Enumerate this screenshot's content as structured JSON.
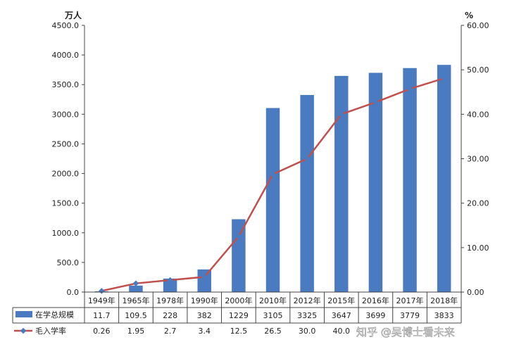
{
  "chart_data": {
    "type": "bar+line",
    "categories": [
      "1949年",
      "1965年",
      "1978年",
      "1990年",
      "2000年",
      "2010年",
      "2012年",
      "2015年",
      "2016年",
      "2017年",
      "2018年"
    ],
    "series": [
      {
        "name": "在学总规模",
        "type": "bar",
        "axis": "left",
        "values": [
          11.7,
          109.5,
          228,
          382,
          1229,
          3105,
          3325,
          3647,
          3699,
          3779,
          3833
        ],
        "labels": [
          "11.7",
          "109.5",
          "228",
          "382",
          "1229",
          "3105",
          "3325",
          "3647",
          "3699",
          "3779",
          "3833"
        ]
      },
      {
        "name": "毛入学率",
        "type": "line",
        "axis": "right",
        "values": [
          0.26,
          1.95,
          2.7,
          3.4,
          12.5,
          26.5,
          30.0,
          40.0,
          42.7,
          45.7,
          48.1
        ],
        "labels": [
          "0.26",
          "1.95",
          "2.7",
          "3.4",
          "12.5",
          "26.5",
          "30.0",
          "40.0",
          "",
          "",
          ""
        ]
      }
    ],
    "y_left": {
      "unit": "万人",
      "min": 0,
      "max": 4500,
      "step": 500,
      "ticks": [
        "0.0",
        "500.0",
        "1000.0",
        "1500.0",
        "2000.0",
        "2500.0",
        "3000.0",
        "3500.0",
        "4000.0",
        "4500.0"
      ]
    },
    "y_right": {
      "unit": "%",
      "min": 0,
      "max": 60,
      "step": 10,
      "ticks": [
        "0.00",
        "10.00",
        "20.00",
        "30.00",
        "40.00",
        "50.00",
        "60.00"
      ]
    },
    "colors": {
      "bar": "#4a7ac0",
      "line": "#c0504d",
      "marker": "#4a7ac0"
    },
    "legend_position": "data-table-below"
  },
  "watermark": "知乎 @吴博士看未来"
}
